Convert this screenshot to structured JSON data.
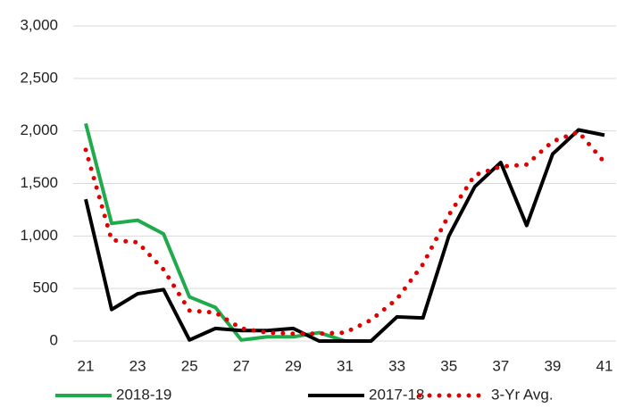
{
  "chart_data": {
    "type": "line",
    "x": [
      21,
      22,
      23,
      24,
      25,
      26,
      27,
      28,
      29,
      30,
      31,
      32,
      33,
      34,
      35,
      36,
      37,
      38,
      39,
      40,
      41
    ],
    "xlim": [
      21,
      41
    ],
    "xticks": [
      21,
      23,
      25,
      27,
      29,
      31,
      33,
      35,
      37,
      39,
      41
    ],
    "ylim": [
      0,
      3000
    ],
    "yticks": [
      0,
      500,
      {
        "value": 1000,
        "label": "1,000"
      },
      {
        "value": 1500,
        "label": "1,500"
      },
      {
        "value": 2000,
        "label": "2,000"
      },
      {
        "value": 2500,
        "label": "2,500"
      },
      {
        "value": 3000,
        "label": "3,000"
      }
    ],
    "grid": true,
    "legend": "bottom",
    "series": [
      {
        "name": "2018-19",
        "color": "#1faa4b",
        "style": "solid",
        "values": [
          2070,
          1120,
          1150,
          1020,
          420,
          320,
          10,
          40,
          40,
          80,
          0,
          null,
          null,
          null,
          null,
          null,
          null,
          null,
          null,
          null,
          null
        ]
      },
      {
        "name": "2017-18",
        "color": "#000000",
        "style": "solid",
        "values": [
          1350,
          300,
          450,
          490,
          10,
          120,
          100,
          100,
          120,
          0,
          0,
          0,
          230,
          220,
          1000,
          1470,
          1700,
          1100,
          1780,
          2010,
          1960
        ]
      },
      {
        "name": "3-Yr Avg.",
        "color": "#e00000",
        "style": "dotted",
        "values": [
          1820,
          960,
          940,
          680,
          290,
          270,
          120,
          80,
          70,
          70,
          80,
          200,
          400,
          730,
          1200,
          1580,
          1660,
          1680,
          1900,
          1990,
          1700
        ]
      }
    ]
  }
}
